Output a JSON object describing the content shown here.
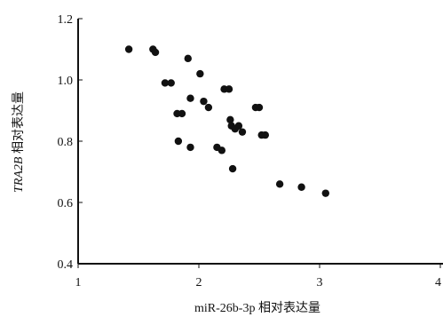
{
  "chart_data": {
    "type": "scatter",
    "title": "",
    "xlabel": "miR-26b-3p 相对表达量",
    "ylabel": "TRA2B 相对表达量",
    "xlim": [
      1,
      4
    ],
    "ylim": [
      0.4,
      1.2
    ],
    "x_ticks": [
      1,
      2,
      3,
      4
    ],
    "y_ticks": [
      0.4,
      0.6,
      0.8,
      1.0,
      1.2
    ],
    "x_tick_labels": [
      "1",
      "2",
      "3",
      "4"
    ],
    "y_tick_labels": [
      "0.4",
      "0.6",
      "0.8",
      "1.0",
      "1.2"
    ],
    "grid": false,
    "legend": "none",
    "points": [
      {
        "x": 1.42,
        "y": 1.1
      },
      {
        "x": 1.62,
        "y": 1.1
      },
      {
        "x": 1.64,
        "y": 1.09
      },
      {
        "x": 1.72,
        "y": 0.99
      },
      {
        "x": 1.77,
        "y": 0.99
      },
      {
        "x": 1.82,
        "y": 0.89
      },
      {
        "x": 1.86,
        "y": 0.89
      },
      {
        "x": 1.83,
        "y": 0.8
      },
      {
        "x": 1.91,
        "y": 1.07
      },
      {
        "x": 1.93,
        "y": 0.94
      },
      {
        "x": 1.93,
        "y": 0.78
      },
      {
        "x": 2.01,
        "y": 1.02
      },
      {
        "x": 2.04,
        "y": 0.93
      },
      {
        "x": 2.08,
        "y": 0.91
      },
      {
        "x": 2.15,
        "y": 0.78
      },
      {
        "x": 2.19,
        "y": 0.77
      },
      {
        "x": 2.21,
        "y": 0.97
      },
      {
        "x": 2.25,
        "y": 0.97
      },
      {
        "x": 2.26,
        "y": 0.87
      },
      {
        "x": 2.27,
        "y": 0.85
      },
      {
        "x": 2.3,
        "y": 0.84
      },
      {
        "x": 2.33,
        "y": 0.85
      },
      {
        "x": 2.36,
        "y": 0.83
      },
      {
        "x": 2.28,
        "y": 0.71
      },
      {
        "x": 2.47,
        "y": 0.91
      },
      {
        "x": 2.5,
        "y": 0.91
      },
      {
        "x": 2.52,
        "y": 0.82
      },
      {
        "x": 2.55,
        "y": 0.82
      },
      {
        "x": 2.67,
        "y": 0.66
      },
      {
        "x": 2.85,
        "y": 0.65
      },
      {
        "x": 3.05,
        "y": 0.63
      }
    ]
  }
}
